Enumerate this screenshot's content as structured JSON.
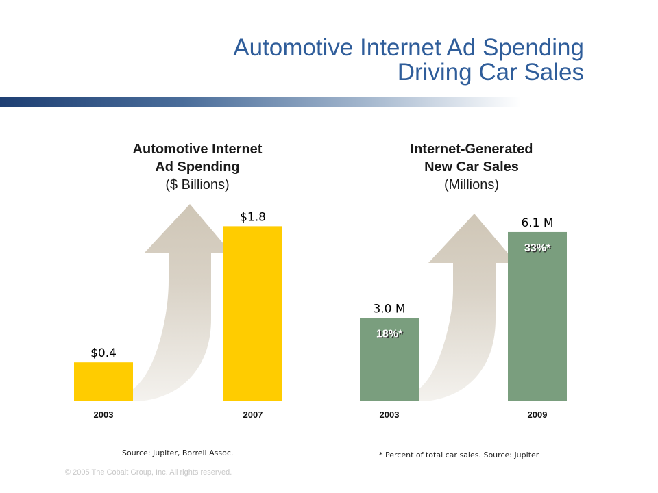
{
  "title_line1": "Automotive Internet Ad Spending",
  "title_line2": "Driving Car Sales",
  "chart_data": [
    {
      "type": "bar",
      "title": "Automotive Internet Ad Spending",
      "unit": "($ Billions)",
      "categories": [
        "2003",
        "2007"
      ],
      "values": [
        0.4,
        1.8
      ],
      "value_labels": [
        "$0.4",
        "$1.8"
      ],
      "bar_color": "#ffcc00",
      "source": "Source: Jupiter, Borrell Assoc."
    },
    {
      "type": "bar",
      "title": "Internet-Generated New Car Sales",
      "unit": "(Millions)",
      "categories": [
        "2003",
        "2009"
      ],
      "values": [
        3.0,
        6.1
      ],
      "value_labels": [
        "3.0 M",
        "6.1 M"
      ],
      "percent_labels": [
        "18%*",
        "33%*"
      ],
      "bar_color": "#7a9e7e",
      "footnote": "* Percent of total car sales. Source: Jupiter"
    }
  ],
  "copyright": "© 2005 The Cobalt Group, Inc. All rights reserved."
}
